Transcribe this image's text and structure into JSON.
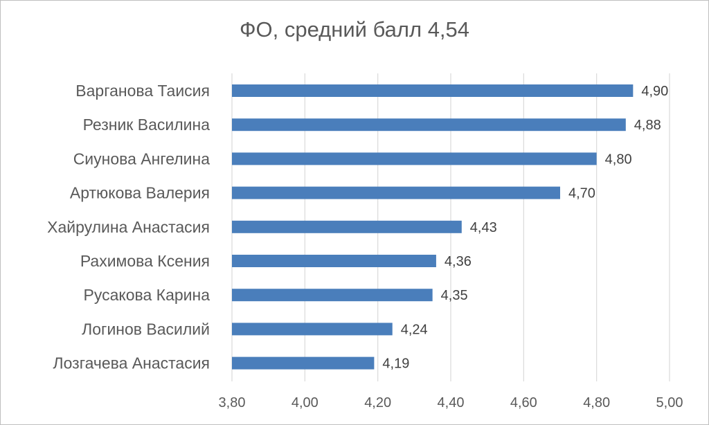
{
  "chart_data": {
    "type": "bar",
    "orientation": "horizontal",
    "title": "ФО, средний балл 4,54",
    "categories": [
      "Варганова Таисия",
      "Резник Василина",
      "Сиунова Ангелина",
      "Артюкова Валерия",
      "Хайрулина Анастасия",
      "Рахимова Ксения",
      "Русакова Карина",
      "Логинов Василий",
      "Лозгачева Анастасия"
    ],
    "values": [
      4.9,
      4.88,
      4.8,
      4.7,
      4.43,
      4.36,
      4.35,
      4.24,
      4.19
    ],
    "value_labels": [
      "4,90",
      "4,88",
      "4,80",
      "4,70",
      "4,43",
      "4,36",
      "4,35",
      "4,24",
      "4,19"
    ],
    "xlim": [
      3.8,
      5.0
    ],
    "xticks": [
      3.8,
      4.0,
      4.2,
      4.4,
      4.6,
      4.8,
      5.0
    ],
    "xtick_labels": [
      "3,80",
      "4,00",
      "4,20",
      "4,40",
      "4,60",
      "4,80",
      "5,00"
    ],
    "grid": "vertical",
    "bar_color": "#4a7ebb",
    "xlabel": "",
    "ylabel": ""
  }
}
